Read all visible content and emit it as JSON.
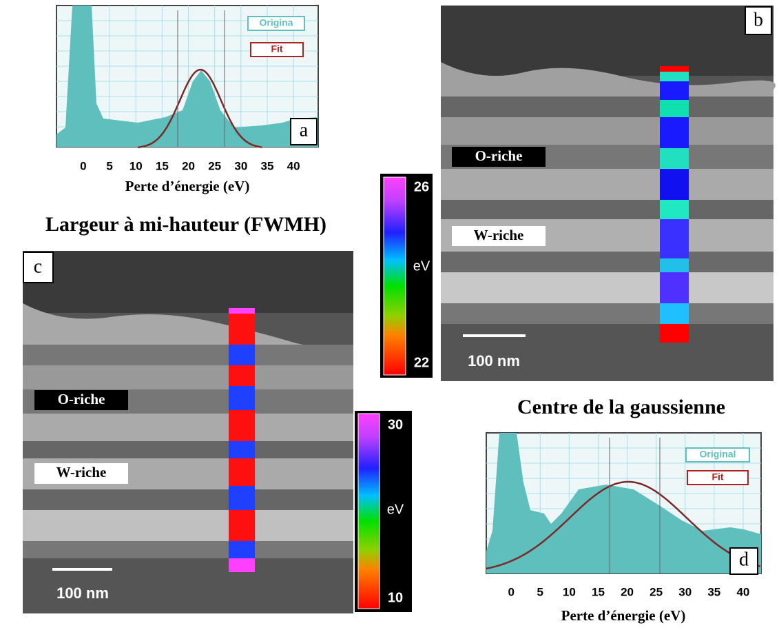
{
  "panel_a": {
    "label": "a",
    "xlim": [
      -5.1,
      44.7
    ],
    "xticks": [
      0,
      5,
      10,
      15,
      20,
      25,
      30,
      35,
      40
    ],
    "xlabel": "Perte d’énergie (eV)",
    "legend": [
      "Origina",
      "Fit"
    ]
  },
  "panel_b": {
    "label": "b",
    "annotations": [
      "O-riche",
      "W-riche"
    ],
    "scale_bar": "100 nm",
    "colorbar": {
      "max": 26,
      "unit": "eV",
      "min": 22
    }
  },
  "title_c": "Largeur à mi-hauteur (FWMH)",
  "panel_c": {
    "label": "c",
    "annotations": [
      "O-riche",
      "W-riche"
    ],
    "scale_bar": "100 nm",
    "colorbar": {
      "max": 30,
      "unit": "eV",
      "min": 10
    }
  },
  "title_d": "Centre de la gaussienne",
  "panel_d": {
    "label": "d",
    "xlim": [
      -4.3,
      43.1
    ],
    "xticks": [
      0,
      5,
      10,
      15,
      20,
      25,
      30,
      35,
      40
    ],
    "xlabel": "Perte d’énergie (eV)",
    "legend": [
      "Original",
      "Fit"
    ]
  }
}
